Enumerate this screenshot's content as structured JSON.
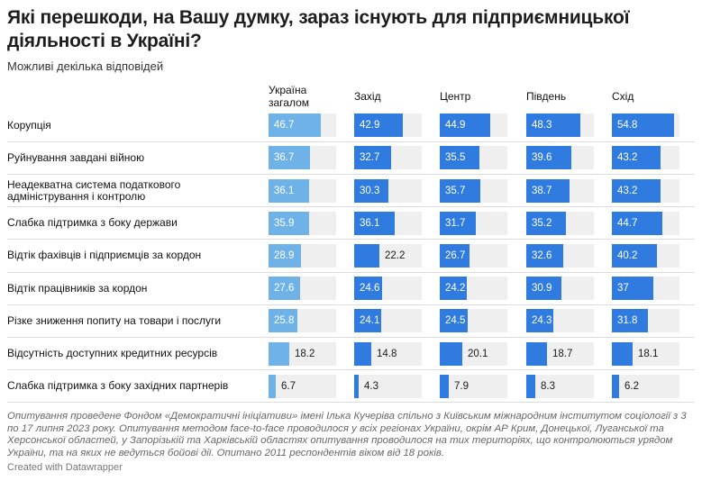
{
  "title": "Які перешкоди, на Вашу думку, зараз існують для підприємницької діяльності в Україні?",
  "subtitle": "Можливі декілька відповідей",
  "colors": {
    "national": "#6fb2e8",
    "regional": "#2f7be0",
    "track": "#efefef",
    "label_light": "#ffffff",
    "label_dark": "#1a1a1a"
  },
  "chart_data": {
    "type": "bar",
    "title": "Які перешкоди, на Вашу думку, зараз існують для підприємницької діяльності в Україні?",
    "xlim": [
      0,
      60
    ],
    "categories": [
      "Корупція",
      "Руйнування завдані війною",
      "Неадекватна система податкового адміністрування і контролю",
      "Слабка підтримка з боку держави",
      "Відтік фахівців і підприємців за кордон",
      "Відтік працівників за кордон",
      "Різке зниження попиту на товари і послуги",
      "Відсутність доступних кредитних ресурсів",
      "Слабка підтримка з боку західних партнерів"
    ],
    "series": [
      {
        "name": "Україна загалом",
        "values": [
          46.7,
          36.7,
          36.1,
          35.9,
          28.9,
          27.6,
          25.8,
          18.2,
          6.7
        ]
      },
      {
        "name": "Захід",
        "values": [
          42.9,
          32.7,
          30.3,
          36.1,
          22.2,
          24.6,
          24.1,
          14.8,
          4.3
        ]
      },
      {
        "name": "Центр",
        "values": [
          44.9,
          35.5,
          35.7,
          31.7,
          26.7,
          24.2,
          24.5,
          20.1,
          7.9
        ]
      },
      {
        "name": "Південь",
        "values": [
          48.3,
          39.6,
          38.7,
          35.2,
          32.6,
          30.9,
          24.3,
          18.7,
          8.3
        ]
      },
      {
        "name": "Схід",
        "values": [
          54.8,
          43.2,
          43.2,
          44.7,
          40.2,
          37,
          31.8,
          18.1,
          6.2
        ]
      }
    ]
  },
  "note": "Опитування проведене Фондом «Демократичні ініціативи» імені Ілька Кучеріва спільно з Київським міжнародним інститутом соціології з 3 по 17 липня 2023 року. Опитування методом face-to-face проводилося у всіх регіонах України, окрім АР Крим, Донецької, Луганської та Херсонської областей, у Запорізькій та Харківській областях опитування проводилося на тих територіях, що контролюються урядом України, та на яких не ведуться бойові дії. Опитано 2011 респондентів віком від 18 років.",
  "credit": "Created with Datawrapper"
}
